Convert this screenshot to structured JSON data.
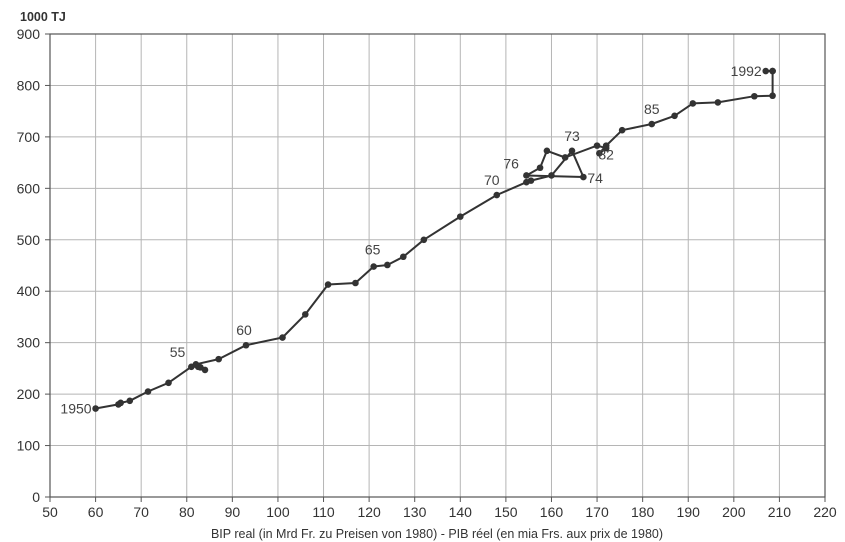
{
  "chart_data": {
    "type": "line",
    "title": "",
    "ylabel": "1000 TJ",
    "xlabel": "BIP real (in Mrd Fr. zu Preisen von 1980) - PIB réel (en mia Frs. aux prix de 1980)",
    "xlim": [
      50,
      220
    ],
    "ylim": [
      0,
      900
    ],
    "xticks": [
      50,
      60,
      70,
      80,
      90,
      100,
      110,
      120,
      130,
      140,
      150,
      160,
      170,
      180,
      190,
      200,
      210,
      220
    ],
    "yticks": [
      0,
      100,
      200,
      300,
      400,
      500,
      600,
      700,
      800,
      900
    ],
    "grid": true,
    "legend": "none",
    "series": [
      {
        "x": [
          60,
          65,
          65.5,
          67.5,
          71.5,
          76,
          81,
          82.5,
          83,
          84,
          82,
          87,
          93,
          101,
          106,
          111,
          117,
          121,
          124,
          127.5,
          132,
          140,
          148,
          154.5,
          155.5,
          160,
          164.5,
          167,
          154.5,
          157.5,
          159,
          163,
          170,
          172,
          170.5,
          172,
          175.5,
          182,
          187,
          191,
          196.5,
          204.5,
          208.5,
          208.5,
          208.5,
          207
        ],
        "y": [
          172,
          180,
          183,
          187,
          205,
          222,
          253,
          253,
          252,
          247,
          258,
          268,
          295,
          310,
          355,
          413,
          416,
          448,
          451,
          467,
          500,
          545,
          587,
          612,
          615,
          625,
          673,
          622,
          625,
          640,
          673,
          660,
          683,
          678,
          668,
          683,
          713,
          725,
          741,
          765,
          767,
          779,
          780,
          828,
          828,
          828
        ]
      }
    ],
    "annotations": [
      {
        "text": "1950",
        "x": 60,
        "y": 172
      },
      {
        "text": "55",
        "x": 81,
        "y": 253
      },
      {
        "text": "60",
        "x": 93,
        "y": 295
      },
      {
        "text": "65",
        "x": 121,
        "y": 448
      },
      {
        "text": "70",
        "x": 148,
        "y": 587
      },
      {
        "text": "76",
        "x": 155.5,
        "y": 615
      },
      {
        "text": "73",
        "x": 164.5,
        "y": 673
      },
      {
        "text": "82",
        "x": 170.5,
        "y": 668
      },
      {
        "text": "74",
        "x": 167,
        "y": 622
      },
      {
        "text": "85",
        "x": 182,
        "y": 725
      },
      {
        "text": "1992",
        "x": 207,
        "y": 828
      }
    ]
  }
}
